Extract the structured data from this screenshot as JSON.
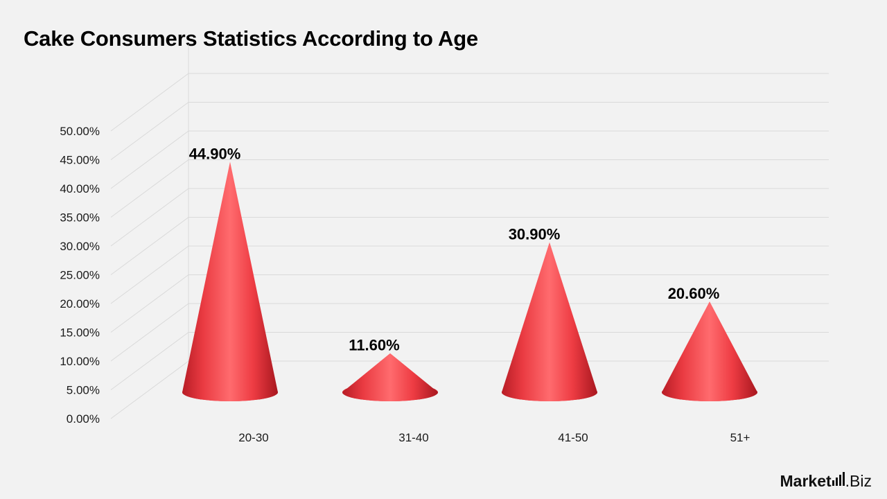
{
  "chart_data": {
    "type": "bar",
    "style": "3d-cone",
    "title": "Cake Consumers Statistics According to Age",
    "categories": [
      "20-30",
      "31-40",
      "41-50",
      "51+"
    ],
    "values": [
      44.9,
      11.6,
      30.9,
      20.6
    ],
    "data_labels": [
      "44.90%",
      "11.60%",
      "30.90%",
      "20.60%"
    ],
    "yticks": [
      "0.00%",
      "5.00%",
      "10.00%",
      "15.00%",
      "20.00%",
      "25.00%",
      "30.00%",
      "35.00%",
      "40.00%",
      "45.00%",
      "50.00%"
    ],
    "ylim": [
      0,
      50
    ],
    "grid": true,
    "legend": "none",
    "bar_color": "#f0454b"
  },
  "brand": {
    "name": "Market",
    "suffix": ".Biz"
  }
}
